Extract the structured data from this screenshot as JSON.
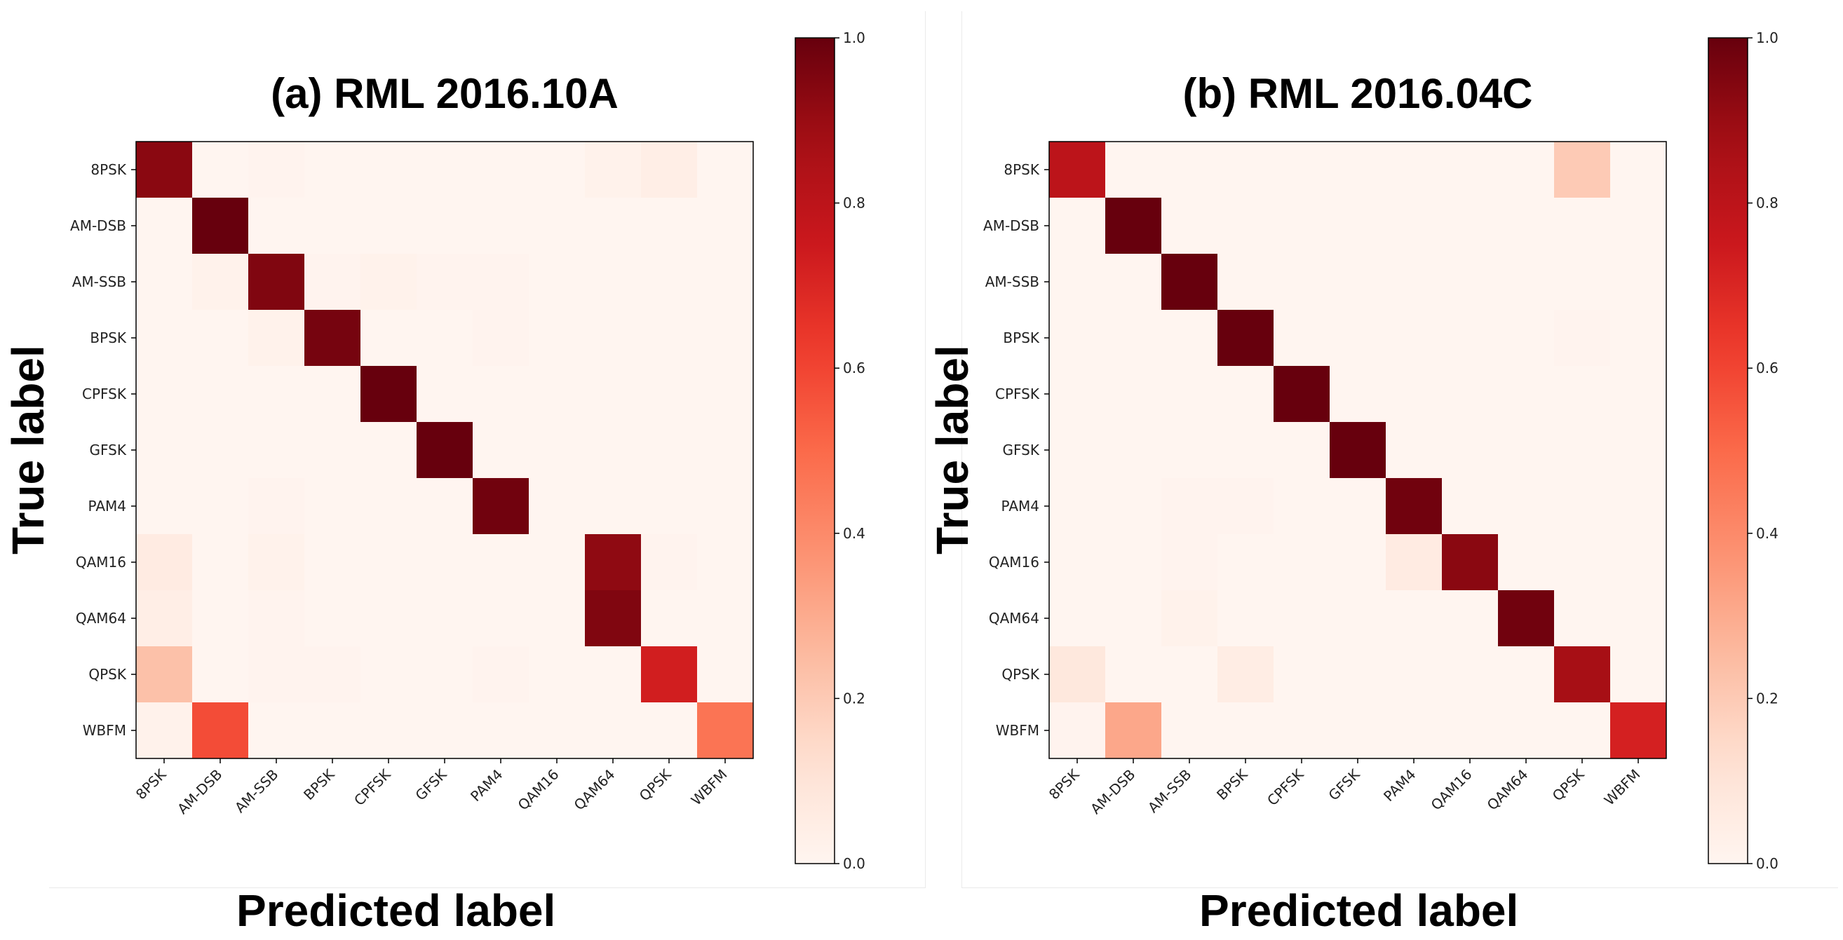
{
  "chart_data": [
    {
      "type": "heatmap",
      "title": "(a) RML 2016.10A",
      "xlabel": "Predicted label",
      "ylabel": "True label",
      "x_categories": [
        "8PSK",
        "AM-DSB",
        "AM-SSB",
        "BPSK",
        "CPFSK",
        "GFSK",
        "PAM4",
        "QAM16",
        "QAM64",
        "QPSK",
        "WBFM"
      ],
      "y_categories": [
        "8PSK",
        "AM-DSB",
        "AM-SSB",
        "BPSK",
        "CPFSK",
        "GFSK",
        "PAM4",
        "QAM16",
        "QAM64",
        "QPSK",
        "WBFM"
      ],
      "values": [
        [
          0.93,
          0.0,
          0.01,
          0.0,
          0.0,
          0.0,
          0.0,
          0.0,
          0.02,
          0.04,
          0.0
        ],
        [
          0.0,
          1.0,
          0.0,
          0.0,
          0.0,
          0.0,
          0.0,
          0.0,
          0.0,
          0.0,
          0.0
        ],
        [
          0.0,
          0.02,
          0.95,
          0.01,
          0.02,
          0.01,
          0.01,
          0.0,
          0.0,
          0.0,
          0.0
        ],
        [
          0.0,
          0.0,
          0.02,
          0.97,
          0.0,
          0.0,
          0.01,
          0.0,
          0.0,
          0.0,
          0.0
        ],
        [
          0.0,
          0.0,
          0.0,
          0.0,
          1.0,
          0.0,
          0.0,
          0.0,
          0.0,
          0.0,
          0.0
        ],
        [
          0.0,
          0.0,
          0.0,
          0.0,
          0.0,
          1.0,
          0.0,
          0.0,
          0.0,
          0.0,
          0.0
        ],
        [
          0.0,
          0.0,
          0.01,
          0.0,
          0.0,
          0.0,
          0.98,
          0.0,
          0.0,
          0.0,
          0.0
        ],
        [
          0.06,
          0.0,
          0.02,
          0.0,
          0.0,
          0.0,
          0.0,
          0.0,
          0.92,
          0.01,
          0.0
        ],
        [
          0.04,
          0.0,
          0.01,
          0.0,
          0.0,
          0.0,
          0.0,
          0.0,
          0.95,
          0.0,
          0.0
        ],
        [
          0.23,
          0.0,
          0.01,
          0.01,
          0.0,
          0.0,
          0.01,
          0.0,
          0.0,
          0.73,
          0.0
        ],
        [
          0.02,
          0.58,
          0.0,
          0.0,
          0.0,
          0.0,
          0.0,
          0.0,
          0.0,
          0.0,
          0.47
        ]
      ],
      "colorbar": {
        "min": 0.0,
        "max": 1.0,
        "ticks": [
          "0.0",
          "0.2",
          "0.4",
          "0.6",
          "0.8",
          "1.0"
        ],
        "colormap": "Reds"
      }
    },
    {
      "type": "heatmap",
      "title": "(b) RML 2016.04C",
      "xlabel": "Predicted label",
      "ylabel": "True label",
      "x_categories": [
        "8PSK",
        "AM-DSB",
        "AM-SSB",
        "BPSK",
        "CPFSK",
        "GFSK",
        "PAM4",
        "QAM16",
        "QAM64",
        "QPSK",
        "WBFM"
      ],
      "y_categories": [
        "8PSK",
        "AM-DSB",
        "AM-SSB",
        "BPSK",
        "CPFSK",
        "GFSK",
        "PAM4",
        "QAM16",
        "QAM64",
        "QPSK",
        "WBFM"
      ],
      "values": [
        [
          0.8,
          0.0,
          0.0,
          0.0,
          0.0,
          0.0,
          0.0,
          0.0,
          0.0,
          0.2,
          0.0
        ],
        [
          0.0,
          1.0,
          0.0,
          0.0,
          0.0,
          0.0,
          0.0,
          0.0,
          0.0,
          0.0,
          0.0
        ],
        [
          0.0,
          0.0,
          1.0,
          0.0,
          0.0,
          0.0,
          0.0,
          0.0,
          0.0,
          0.0,
          0.0
        ],
        [
          0.0,
          0.0,
          0.0,
          1.0,
          0.0,
          0.0,
          0.0,
          0.0,
          0.0,
          0.01,
          0.0
        ],
        [
          0.0,
          0.0,
          0.0,
          0.0,
          1.0,
          0.0,
          0.0,
          0.0,
          0.0,
          0.0,
          0.0
        ],
        [
          0.0,
          0.0,
          0.0,
          0.0,
          0.0,
          1.0,
          0.0,
          0.0,
          0.0,
          0.0,
          0.0
        ],
        [
          0.0,
          0.0,
          0.01,
          0.01,
          0.0,
          0.0,
          0.98,
          0.0,
          0.0,
          0.0,
          0.0
        ],
        [
          0.0,
          0.0,
          0.01,
          0.0,
          0.0,
          0.0,
          0.06,
          0.93,
          0.0,
          0.0,
          0.0
        ],
        [
          0.0,
          0.0,
          0.02,
          0.0,
          0.0,
          0.0,
          0.0,
          0.0,
          0.98,
          0.0,
          0.0
        ],
        [
          0.08,
          0.0,
          0.0,
          0.05,
          0.0,
          0.0,
          0.0,
          0.0,
          0.0,
          0.87,
          0.0
        ],
        [
          0.01,
          0.31,
          0.0,
          0.0,
          0.0,
          0.0,
          0.0,
          0.0,
          0.0,
          0.0,
          0.72
        ]
      ],
      "colorbar": {
        "min": 0.0,
        "max": 1.0,
        "ticks": [
          "0.0",
          "0.2",
          "0.4",
          "0.6",
          "0.8",
          "1.0"
        ],
        "colormap": "Reds"
      }
    }
  ]
}
